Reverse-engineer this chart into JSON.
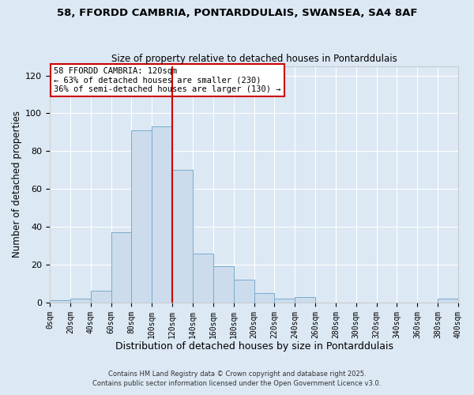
{
  "title1": "58, FFORDD CAMBRIA, PONTARDDULAIS, SWANSEA, SA4 8AF",
  "title2": "Size of property relative to detached houses in Pontarddulais",
  "xlabel": "Distribution of detached houses by size in Pontarddulais",
  "ylabel": "Number of detached properties",
  "bin_edges": [
    0,
    20,
    40,
    60,
    80,
    100,
    120,
    140,
    160,
    180,
    200,
    220,
    240,
    260,
    280,
    300,
    320,
    340,
    360,
    380,
    400
  ],
  "bar_heights": [
    1,
    2,
    6,
    37,
    91,
    93,
    70,
    26,
    19,
    12,
    5,
    2,
    3,
    0,
    0,
    0,
    0,
    0,
    0,
    2
  ],
  "bar_color": "#ccdcec",
  "bar_edge_color": "#7aabcc",
  "vline_x": 120,
  "vline_color": "#cc0000",
  "annotation_title": "58 FFORDD CAMBRIA: 120sqm",
  "annotation_line1": "← 63% of detached houses are smaller (230)",
  "annotation_line2": "36% of semi-detached houses are larger (130) →",
  "annotation_box_color": "#ffffff",
  "annotation_box_edge": "#cc0000",
  "ylim": [
    0,
    125
  ],
  "xlim": [
    0,
    400
  ],
  "footer1": "Contains HM Land Registry data © Crown copyright and database right 2025.",
  "footer2": "Contains public sector information licensed under the Open Government Licence v3.0.",
  "bg_color": "#dce8f4",
  "plot_bg_color": "#dce8f4",
  "grid_color": "#ffffff",
  "yticks": [
    0,
    20,
    40,
    60,
    80,
    100,
    120
  ],
  "tick_labels": [
    "0sqm",
    "20sqm",
    "40sqm",
    "60sqm",
    "80sqm",
    "100sqm",
    "120sqm",
    "140sqm",
    "160sqm",
    "180sqm",
    "200sqm",
    "220sqm",
    "240sqm",
    "260sqm",
    "280sqm",
    "300sqm",
    "320sqm",
    "340sqm",
    "360sqm",
    "380sqm",
    "400sqm"
  ]
}
